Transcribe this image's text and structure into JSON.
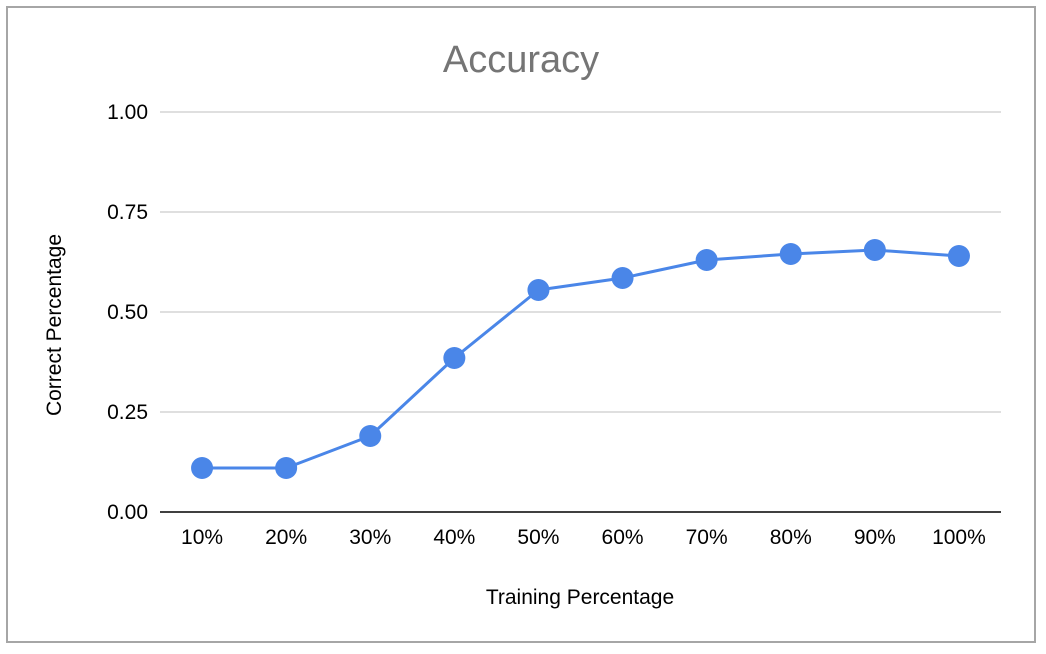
{
  "chart_data": {
    "type": "line",
    "title": "Accuracy",
    "xlabel": "Training Percentage",
    "ylabel": "Correct Percentage",
    "categories": [
      "10%",
      "20%",
      "30%",
      "40%",
      "50%",
      "60%",
      "70%",
      "80%",
      "90%",
      "100%"
    ],
    "series": [
      {
        "values": [
          0.11,
          0.11,
          0.19,
          0.385,
          0.555,
          0.585,
          0.63,
          0.645,
          0.655,
          0.64
        ],
        "color": "#4a86e8"
      }
    ],
    "ylim": [
      0,
      1
    ],
    "yticks": [
      "0.00",
      "0.25",
      "0.50",
      "0.75",
      "1.00"
    ],
    "grid": true,
    "legend": "none",
    "gridline_color": "#cccccc",
    "axis_color": "#000000"
  }
}
